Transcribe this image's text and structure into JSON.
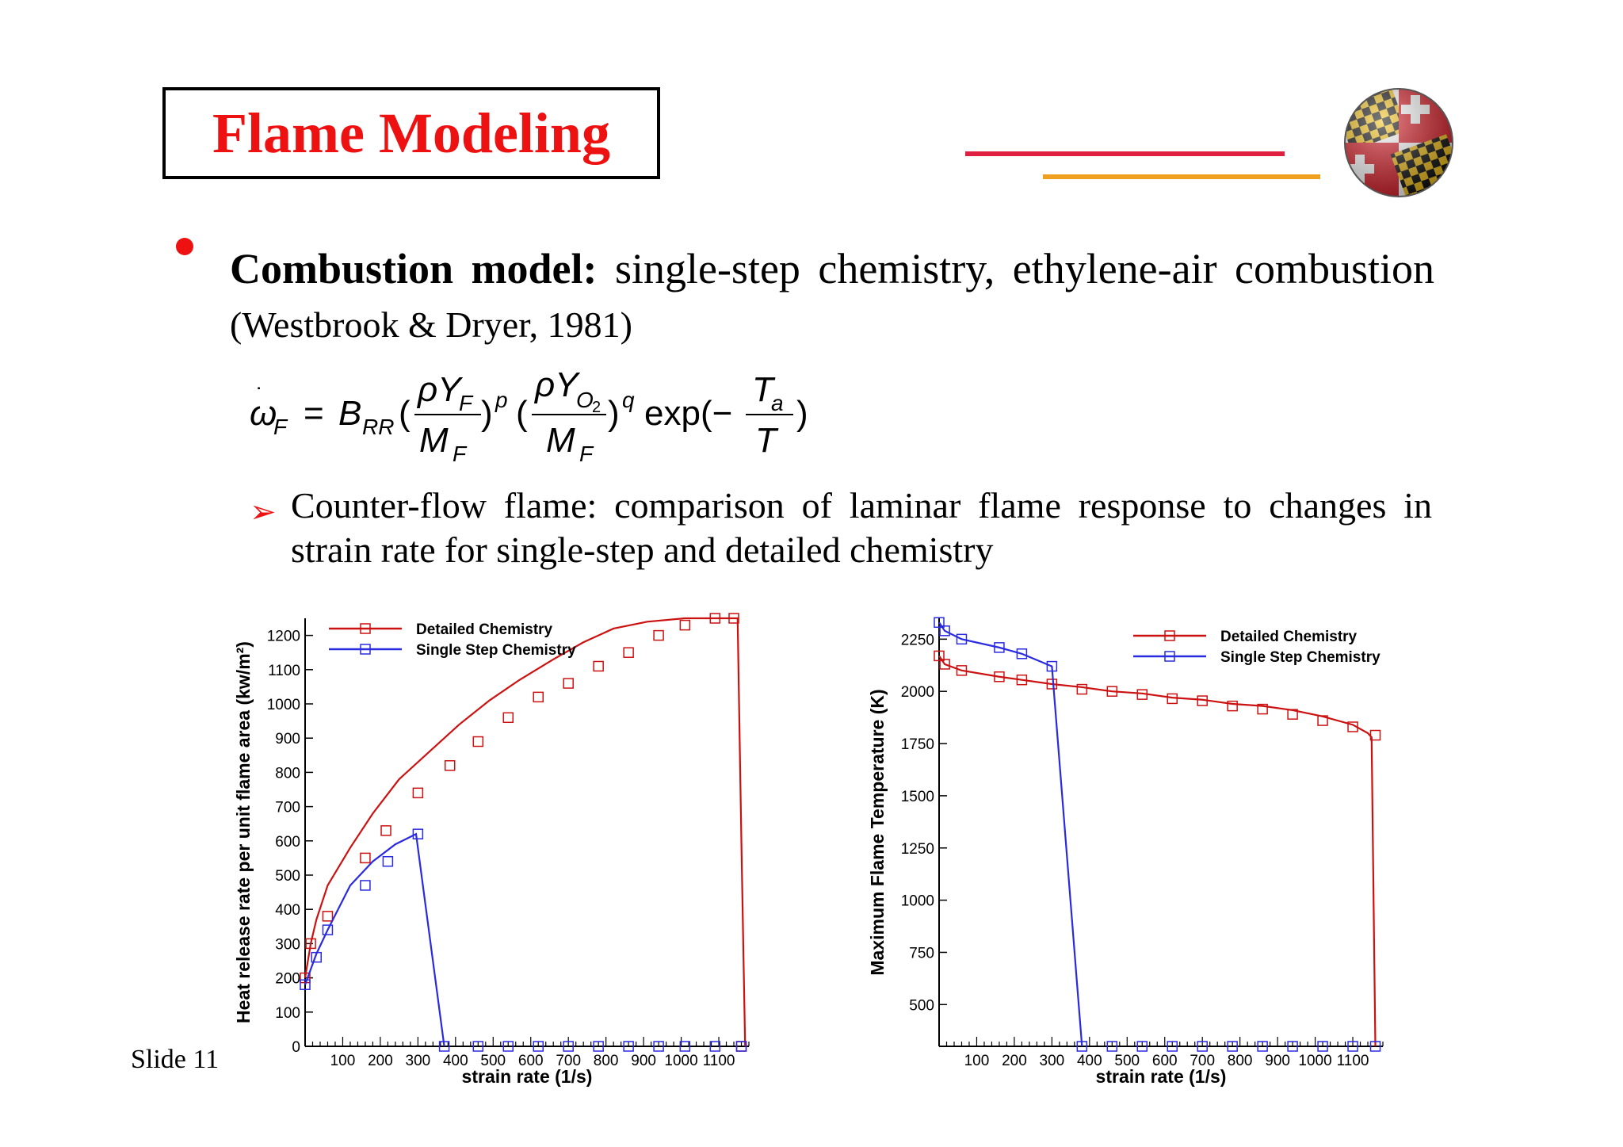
{
  "header": {
    "title": "Flame Modeling"
  },
  "colors": {
    "title_red": "#ee1111",
    "deco_red": "#e02040",
    "deco_gold": "#f0a020",
    "series_red": "#cc1111",
    "series_blue": "#2a2ae0",
    "bullet_red": "#ee1111"
  },
  "bullet1": {
    "bold_text": "Combustion model:",
    "text": "single-step chemistry, ethylene-air combustion",
    "citation": "(Westbrook & Dryer, 1981)"
  },
  "sub_bullet": {
    "text": "Counter-flow flame: comparison of laminar flame response to changes in strain rate for single-step and detailed chemistry"
  },
  "footer": {
    "slide_label": "Slide 11"
  },
  "chart_data": [
    {
      "type": "line",
      "xlabel": "strain rate (1/s)",
      "ylabel": "Heat release rate per unit flame area (kw/m²)",
      "xlim": [
        0,
        1180
      ],
      "ylim": [
        0,
        1250
      ],
      "xticks": [
        100,
        200,
        300,
        400,
        500,
        600,
        700,
        800,
        900,
        1000,
        1100
      ],
      "yticks": [
        0,
        100,
        200,
        300,
        400,
        500,
        600,
        700,
        800,
        900,
        1000,
        1100,
        1200
      ],
      "legend": "top-left",
      "series": [
        {
          "name": "Detailed Chemistry",
          "color": "#cc1111",
          "x": [
            0,
            15,
            30,
            60,
            120,
            180,
            250,
            330,
            410,
            490,
            570,
            660,
            740,
            820,
            910,
            1010,
            1090,
            1150,
            1160,
            1170
          ],
          "y": [
            200,
            300,
            370,
            470,
            580,
            680,
            780,
            860,
            940,
            1010,
            1070,
            1130,
            1180,
            1220,
            1240,
            1250,
            1250,
            1250,
            600,
            0
          ],
          "markers_x": [
            0,
            15,
            60,
            160,
            215,
            300,
            385,
            460,
            540,
            620,
            700,
            780,
            860,
            940,
            1010,
            1090,
            1140,
            1160
          ],
          "markers_y": [
            200,
            300,
            380,
            550,
            630,
            740,
            820,
            890,
            960,
            1020,
            1060,
            1110,
            1150,
            1200,
            1230,
            1250,
            1250,
            0
          ]
        },
        {
          "name": "Single Step Chemistry",
          "color": "#2a2ae0",
          "x": [
            0,
            30,
            60,
            120,
            180,
            240,
            295,
            370
          ],
          "y": [
            180,
            270,
            340,
            470,
            540,
            590,
            620,
            0
          ],
          "markers_x": [
            0,
            30,
            60,
            160,
            220,
            300,
            370,
            460,
            540,
            620,
            700,
            780,
            860,
            940,
            1010,
            1090,
            1160
          ],
          "markers_y": [
            180,
            260,
            340,
            470,
            540,
            620,
            0,
            0,
            0,
            0,
            0,
            0,
            0,
            0,
            0,
            0,
            0
          ]
        }
      ]
    },
    {
      "type": "line",
      "xlabel": "strain rate (1/s)",
      "ylabel": "Maximum Flame Temperature (K)",
      "xlim": [
        0,
        1180
      ],
      "ylim": [
        300,
        2350
      ],
      "xticks": [
        100,
        200,
        300,
        400,
        500,
        600,
        700,
        800,
        900,
        1000,
        1100
      ],
      "yticks": [
        500,
        750,
        1000,
        1250,
        1500,
        1750,
        2000,
        2250
      ],
      "legend": "top-right",
      "series": [
        {
          "name": "Detailed Chemistry",
          "color": "#cc1111",
          "x": [
            0,
            15,
            60,
            160,
            220,
            300,
            380,
            460,
            540,
            620,
            700,
            780,
            860,
            940,
            1020,
            1100,
            1140,
            1150,
            1160
          ],
          "y": [
            2170,
            2130,
            2100,
            2070,
            2055,
            2035,
            2020,
            2000,
            1990,
            1970,
            1960,
            1940,
            1930,
            1910,
            1880,
            1840,
            1800,
            1780,
            300
          ],
          "markers_x": [
            0,
            15,
            60,
            160,
            220,
            300,
            380,
            460,
            540,
            620,
            700,
            780,
            860,
            940,
            1020,
            1100,
            1160
          ],
          "markers_y": [
            2170,
            2130,
            2100,
            2070,
            2055,
            2035,
            2010,
            2000,
            1985,
            1965,
            1955,
            1930,
            1915,
            1890,
            1860,
            1830,
            1790
          ]
        },
        {
          "name": "Single Step Chemistry",
          "color": "#2a2ae0",
          "x": [
            0,
            15,
            60,
            160,
            220,
            300,
            380
          ],
          "y": [
            2330,
            2290,
            2250,
            2210,
            2180,
            2120,
            300
          ],
          "markers_x": [
            0,
            15,
            60,
            160,
            220,
            300,
            380,
            460,
            540,
            620,
            700,
            780,
            860,
            940,
            1020,
            1100,
            1160
          ],
          "markers_y": [
            2330,
            2290,
            2250,
            2210,
            2180,
            2120,
            300,
            300,
            300,
            300,
            300,
            300,
            300,
            300,
            300,
            300,
            300
          ]
        }
      ]
    }
  ]
}
